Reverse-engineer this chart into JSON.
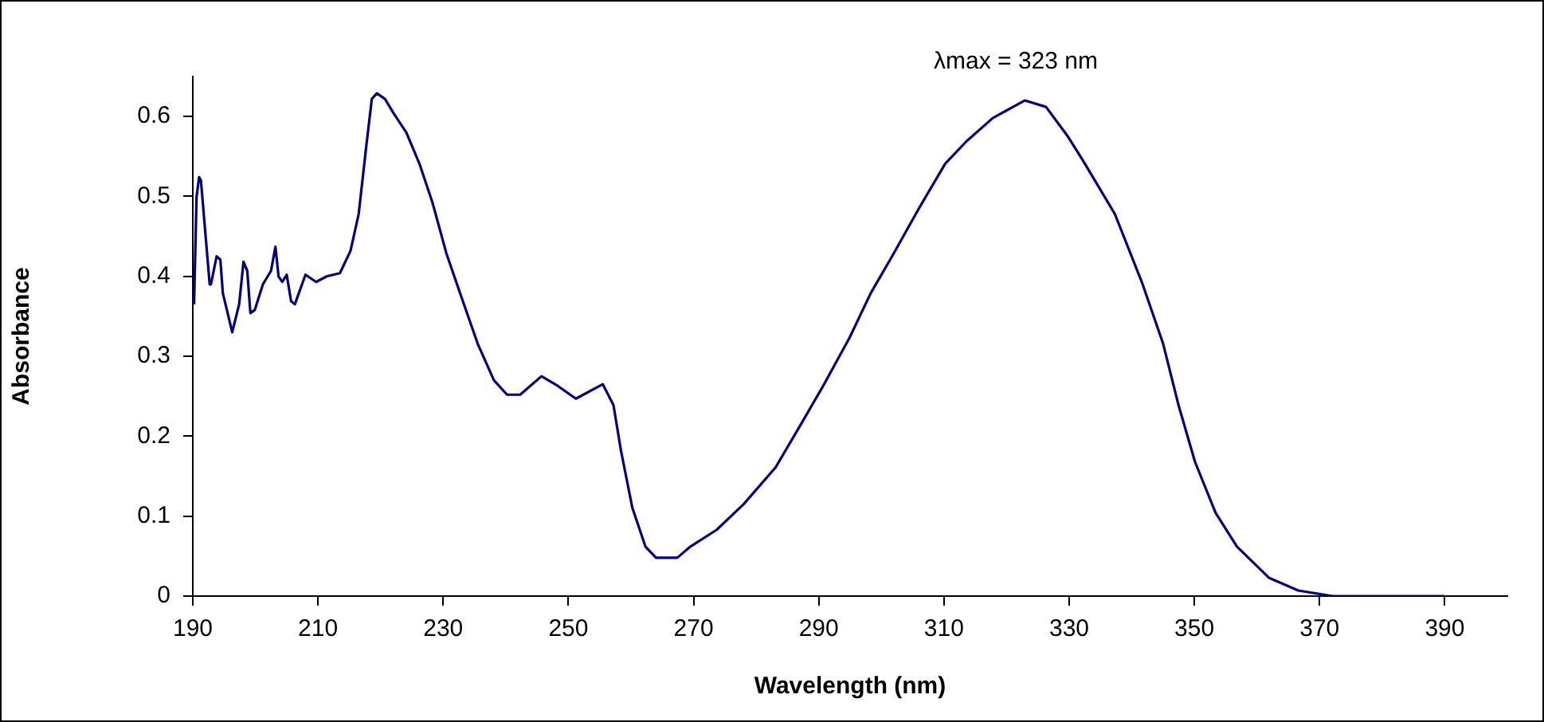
{
  "chart_data": {
    "type": "line",
    "xlabel": "Wavelength (nm)",
    "ylabel": "Absorbance",
    "color": "#000080",
    "marker": "none",
    "grid": false,
    "legend": false,
    "x": [
      190.2,
      190.6,
      191.0,
      191.3,
      191.9,
      192.7,
      192.9,
      193.8,
      194.4,
      194.8,
      196.3,
      197.4,
      198.1,
      198.7,
      199.2,
      199.9,
      201.2,
      202.5,
      203.2,
      203.7,
      204.3,
      205.0,
      205.7,
      206.3,
      208.0,
      209.7,
      211.4,
      213.5,
      215.2,
      216.5,
      217.7,
      218.6,
      219.4,
      220.7,
      222.0,
      224.1,
      226.2,
      228.3,
      230.5,
      233.0,
      235.5,
      238.1,
      240.2,
      242.3,
      245.7,
      248.3,
      251.2,
      255.5,
      257.2,
      258.4,
      260.2,
      262.3,
      264.0,
      267.4,
      269.5,
      273.7,
      278.0,
      283.1,
      287.3,
      290.7,
      294.9,
      298.3,
      301.7,
      306.0,
      310.2,
      313.6,
      317.8,
      322.9,
      326.3,
      329.7,
      332.2,
      337.3,
      341.6,
      345.0,
      347.5,
      350.1,
      353.4,
      356.8,
      361.9,
      366.6,
      372.1,
      378.0,
      389.9
    ],
    "values": [
      0.365,
      0.499,
      0.524,
      0.52,
      0.464,
      0.39,
      0.39,
      0.425,
      0.421,
      0.379,
      0.33,
      0.365,
      0.418,
      0.407,
      0.354,
      0.358,
      0.39,
      0.407,
      0.437,
      0.4,
      0.393,
      0.402,
      0.369,
      0.365,
      0.402,
      0.393,
      0.4,
      0.404,
      0.432,
      0.478,
      0.562,
      0.622,
      0.629,
      0.622,
      0.605,
      0.58,
      0.541,
      0.492,
      0.429,
      0.372,
      0.316,
      0.27,
      0.252,
      0.252,
      0.275,
      0.263,
      0.247,
      0.265,
      0.239,
      0.182,
      0.111,
      0.062,
      0.048,
      0.048,
      0.062,
      0.083,
      0.115,
      0.161,
      0.217,
      0.263,
      0.323,
      0.379,
      0.425,
      0.485,
      0.541,
      0.569,
      0.598,
      0.62,
      0.612,
      0.576,
      0.545,
      0.478,
      0.393,
      0.316,
      0.238,
      0.168,
      0.104,
      0.062,
      0.023,
      0.007,
      0,
      0,
      0
    ],
    "xlim": [
      190,
      400
    ],
    "xticks": [
      190,
      210,
      230,
      250,
      270,
      290,
      310,
      330,
      350,
      370,
      390
    ],
    "ylim": [
      0,
      0.65
    ],
    "yticks": [
      0,
      0.1,
      0.2,
      0.3,
      0.4,
      0.5,
      0.6
    ],
    "annotations": [
      {
        "text": "λmax = 323 nm",
        "x": 323,
        "y": 0.62
      }
    ]
  }
}
